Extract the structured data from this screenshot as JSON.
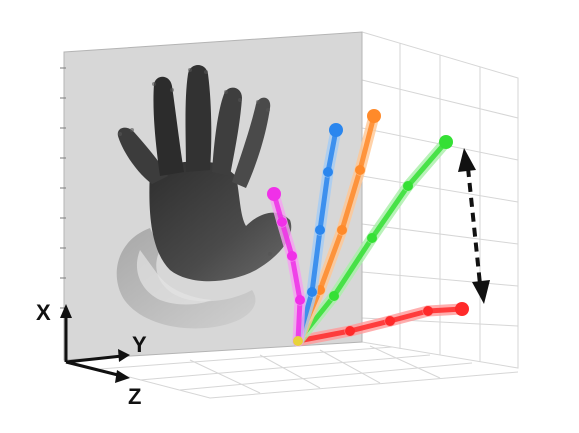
{
  "axes": {
    "x_label": "X",
    "y_label": "Y",
    "z_label": "Z"
  },
  "colors": {
    "background_panel": "#d7d7d7",
    "grid": "#d2d2d2",
    "depth_dark": "#3a3a3a",
    "depth_light": "#bdbdbd",
    "wrist_joint": "#e8d33a",
    "arrow": "#111111"
  },
  "fingers": [
    {
      "name": "thumb",
      "color": "#ff2a2a",
      "light": "#ff9a9a"
    },
    {
      "name": "index",
      "color": "#35e035",
      "light": "#a8f0a8"
    },
    {
      "name": "middle",
      "color": "#ff8a2a",
      "light": "#ffc894"
    },
    {
      "name": "ring",
      "color": "#2a86ee",
      "light": "#a4ccf6"
    },
    {
      "name": "little",
      "color": "#f030e8",
      "light": "#f6a2f2"
    }
  ],
  "icons": {
    "double_arrow": "vertical-double-headed-arrow-icon"
  }
}
